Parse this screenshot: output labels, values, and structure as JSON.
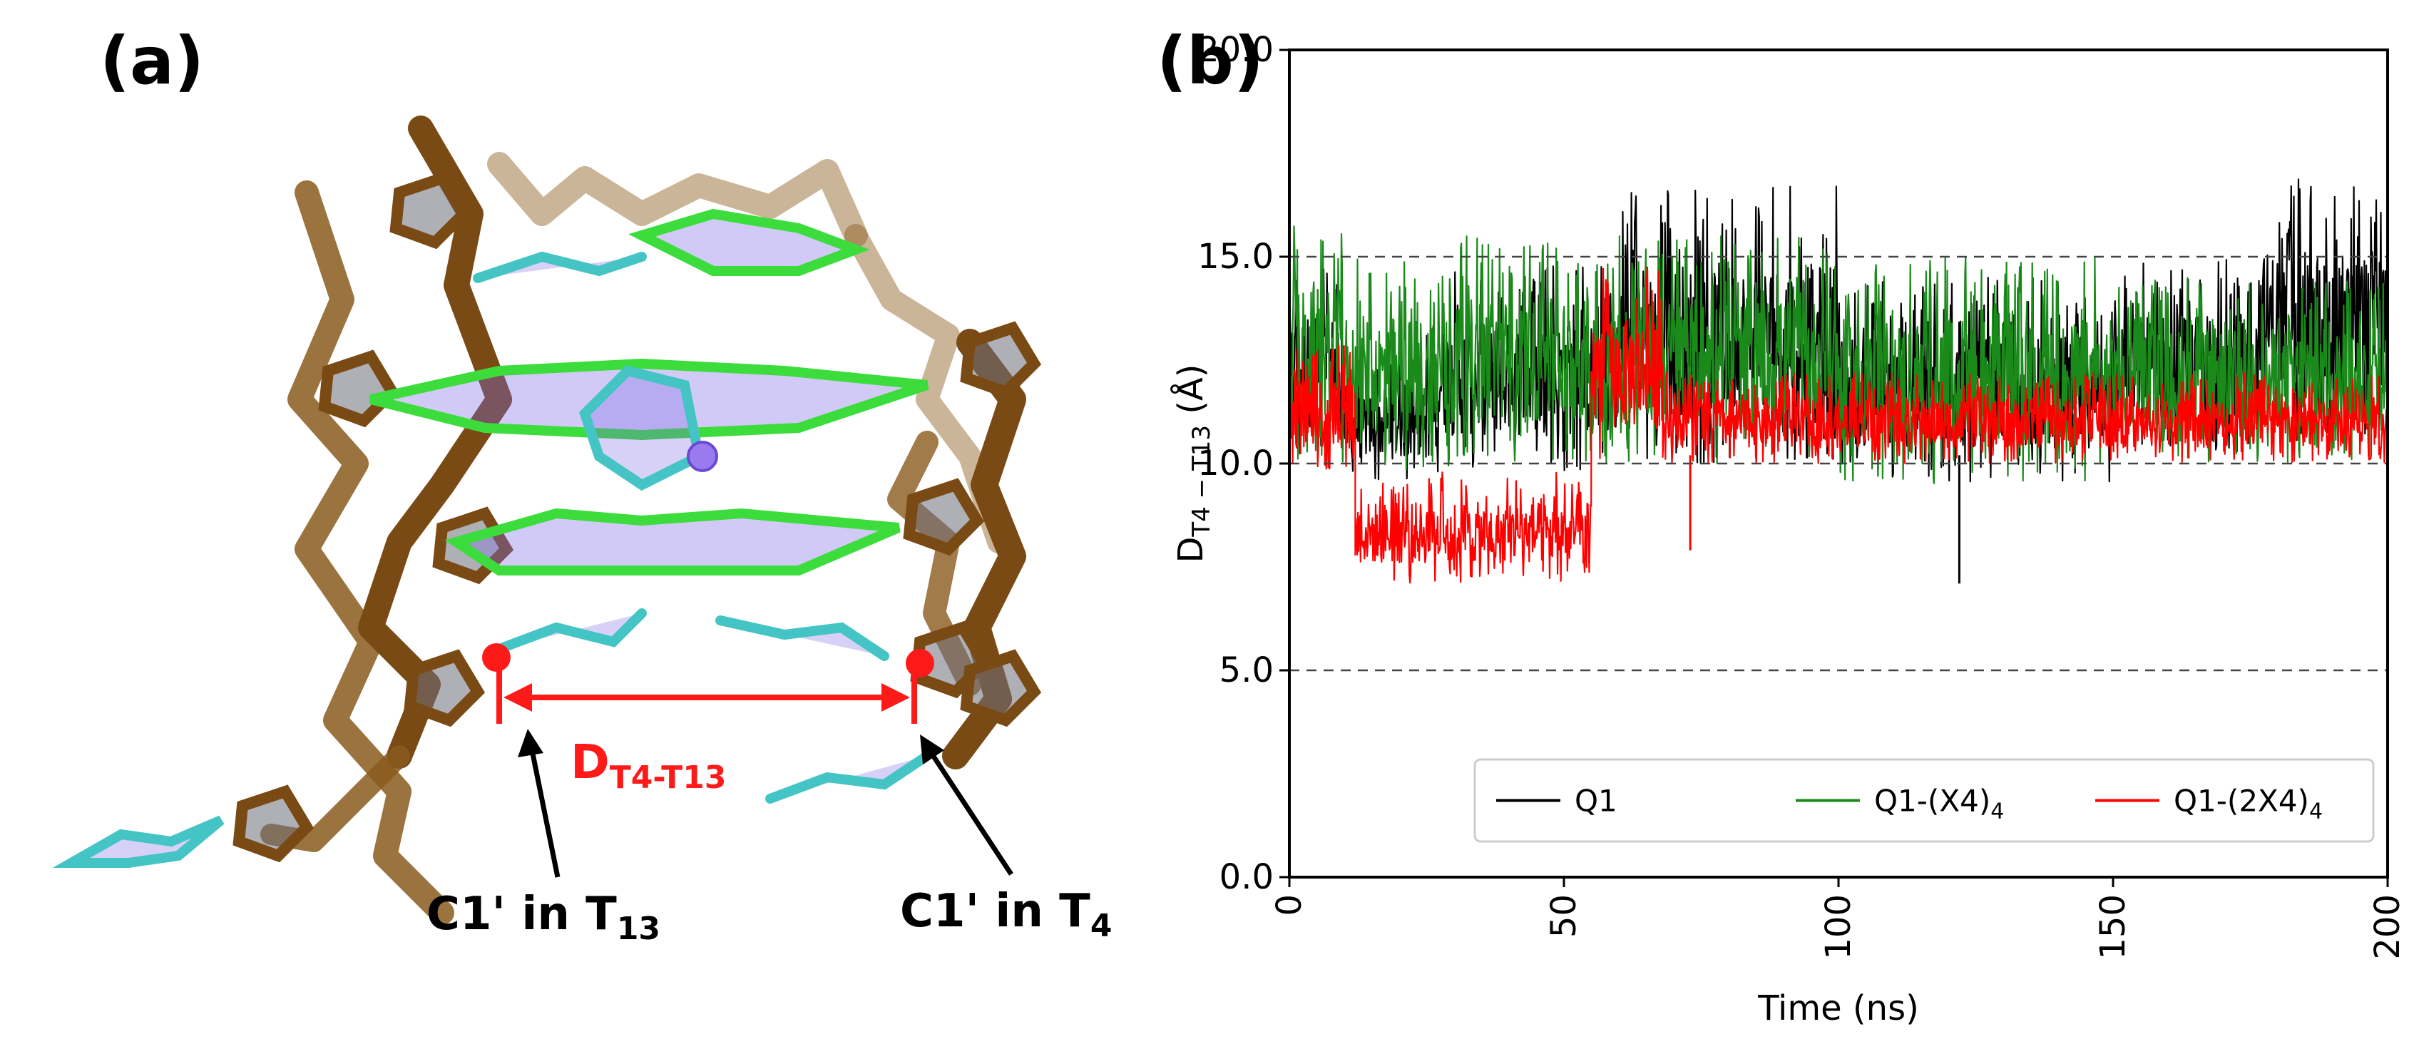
{
  "panels": {
    "a_label": "(a)",
    "b_label": "(b)"
  },
  "structure": {
    "distance_label_main": "D",
    "distance_label_sub": "T4-T13",
    "annotation_left_main": "C1' in T",
    "annotation_left_sub": "13",
    "annotation_right_main": "C1' in T",
    "annotation_right_sub": "4",
    "colors": {
      "backbone": "#8a5a1c",
      "guanine": "#3ddc3d",
      "thymine": "#44c4c4",
      "ion": "#9a7bef",
      "marker": "#ff1a1a"
    }
  },
  "chart_data": {
    "type": "line",
    "title": "",
    "xlabel": "Time (ns)",
    "ylabel_main": "D",
    "ylabel_sub": "T4 − T13",
    "ylabel_unit": " (Å)",
    "xlim": [
      0,
      200
    ],
    "ylim": [
      0,
      20
    ],
    "xticks": [
      "0",
      "50",
      "100",
      "150",
      "200"
    ],
    "yticks": [
      "0.0",
      "5.0",
      "10.0",
      "15.0",
      "20.0"
    ],
    "reference_lines": [
      5.0,
      10.0,
      15.0
    ],
    "legend": {
      "position": "bottom-right",
      "entries": [
        {
          "label": "Q1",
          "sub": ""
        },
        {
          "label": "Q1-(X4)",
          "sub": "4"
        },
        {
          "label": "Q1-(2X4)",
          "sub": "4"
        }
      ]
    },
    "series": [
      {
        "name": "Q1",
        "color": "#000000",
        "segments": [
          {
            "start": 0,
            "end": 10,
            "low": 10.0,
            "high": 15.0
          },
          {
            "start": 10,
            "end": 25,
            "low": 9.6,
            "high": 12.5
          },
          {
            "start": 25,
            "end": 60,
            "low": 9.8,
            "high": 14.8
          },
          {
            "start": 60,
            "end": 100,
            "low": 10.0,
            "high": 16.7
          },
          {
            "start": 100,
            "end": 150,
            "low": 9.5,
            "high": 14.5
          },
          {
            "start": 150,
            "end": 175,
            "low": 10.0,
            "high": 15.0
          },
          {
            "start": 175,
            "end": 200,
            "low": 10.5,
            "high": 16.9
          }
        ],
        "spikes": [
          {
            "x": 122,
            "y": 7.1
          }
        ]
      },
      {
        "name": "Q1-(X4)4",
        "color": "#1a8a1a",
        "segments": [
          {
            "start": 0,
            "end": 10,
            "low": 10.0,
            "high": 15.8
          },
          {
            "start": 10,
            "end": 30,
            "low": 9.8,
            "high": 15.0
          },
          {
            "start": 30,
            "end": 100,
            "low": 10.0,
            "high": 15.5
          },
          {
            "start": 100,
            "end": 150,
            "low": 9.5,
            "high": 15.0
          },
          {
            "start": 150,
            "end": 200,
            "low": 10.0,
            "high": 14.5
          }
        ],
        "spikes": []
      },
      {
        "name": "Q1-(2X4)4",
        "color": "#ff0000",
        "segments": [
          {
            "start": 0,
            "end": 12,
            "low": 9.8,
            "high": 13.0
          },
          {
            "start": 12,
            "end": 55,
            "low": 7.1,
            "high": 9.8
          },
          {
            "start": 55,
            "end": 68,
            "low": 10.0,
            "high": 14.8
          },
          {
            "start": 68,
            "end": 200,
            "low": 10.0,
            "high": 12.2
          }
        ],
        "spikes": [
          {
            "x": 73,
            "y": 7.9
          }
        ]
      }
    ]
  }
}
